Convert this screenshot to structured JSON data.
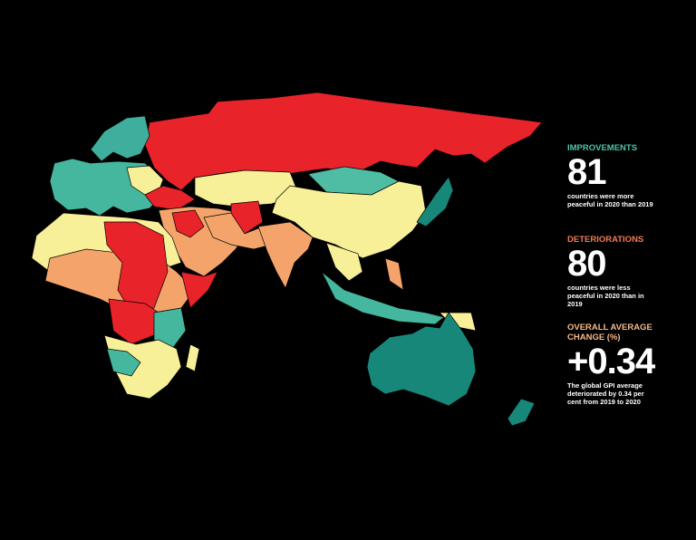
{
  "panel": {
    "improvements": {
      "heading": "IMPROVEMENTS",
      "number": "81",
      "caption": "countries were more peaceful in 2020 than 2019"
    },
    "deteriorations": {
      "heading": "DETERIORATIONS",
      "number": "80",
      "caption": "countries were less peaceful in 2020 than in 2019"
    },
    "overall": {
      "heading": "OVERALL AVERAGE CHANGE (%)",
      "number": "+0.34",
      "caption": "The global GPI average deteriorated by 0.34 per cent from 2019 to 2020"
    }
  }
}
